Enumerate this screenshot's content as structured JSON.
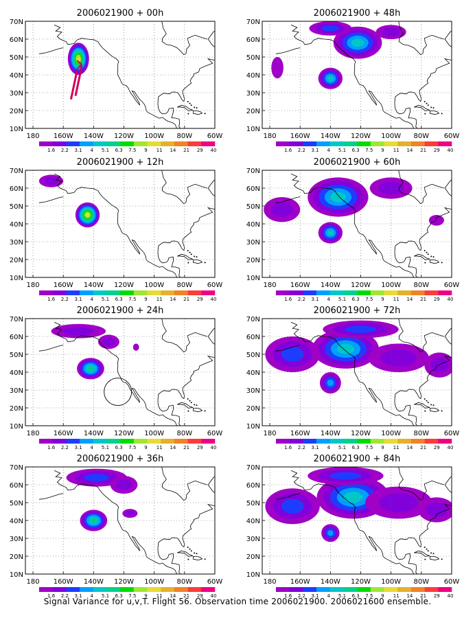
{
  "caption": "Signal Variance for u,v,T. Flight 56. Observation time 2006021900. 2006021600 ensemble.",
  "lat_labels": [
    "70N",
    "60N",
    "50N",
    "40N",
    "30N",
    "20N",
    "10N"
  ],
  "lon_labels": [
    "180",
    "160W",
    "140W",
    "120W",
    "100W",
    "80W",
    "60W"
  ],
  "scale_labels": [
    "1.6",
    "2.2",
    "3.1",
    "4",
    "5.1",
    "6.3",
    "7.5",
    "9",
    "11",
    "14",
    "21",
    "29",
    "40"
  ],
  "scale_colors": [
    "#a000c8",
    "#8200dc",
    "#1e3cff",
    "#00a0ff",
    "#00c8c8",
    "#00d28c",
    "#00dc00",
    "#a0e632",
    "#e6dc32",
    "#e6af2d",
    "#f08228",
    "#fa3c3c",
    "#f00082"
  ],
  "panels": [
    {
      "title": "2006021900 + 00h",
      "blobs": [
        {
          "lon": -150,
          "lat": 49,
          "rx": 7,
          "ry": 9,
          "peak": 8
        }
      ],
      "track": true,
      "circle": false
    },
    {
      "title": "2006021900 + 12h",
      "blobs": [
        {
          "lon": -144,
          "lat": 45,
          "rx": 8,
          "ry": 7,
          "peak": 8
        },
        {
          "lon": -168,
          "lat": 64,
          "rx": 8,
          "ry": 3.5,
          "peak": 1
        }
      ],
      "track": false,
      "circle": false
    },
    {
      "title": "2006021900 + 24h",
      "blobs": [
        {
          "lon": -142,
          "lat": 42,
          "rx": 9,
          "ry": 6,
          "peak": 5
        },
        {
          "lon": -150,
          "lat": 63,
          "rx": 18,
          "ry": 4,
          "peak": 1
        },
        {
          "lon": -130,
          "lat": 57,
          "rx": 7,
          "ry": 4,
          "peak": 1
        },
        {
          "lon": -112,
          "lat": 54,
          "rx": 2,
          "ry": 2,
          "peak": 0
        }
      ],
      "track": false,
      "circle": true
    },
    {
      "title": "2006021900 + 36h",
      "blobs": [
        {
          "lon": -140,
          "lat": 40,
          "rx": 9,
          "ry": 6,
          "peak": 5
        },
        {
          "lon": -138,
          "lat": 64,
          "rx": 20,
          "ry": 5,
          "peak": 2
        },
        {
          "lon": -120,
          "lat": 60,
          "rx": 9,
          "ry": 5,
          "peak": 1
        },
        {
          "lon": -116,
          "lat": 44,
          "rx": 5,
          "ry": 2.5,
          "peak": 1
        }
      ],
      "track": false,
      "circle": false
    },
    {
      "title": "2006021900 + 48h",
      "blobs": [
        {
          "lon": -140,
          "lat": 38,
          "rx": 8,
          "ry": 6,
          "peak": 4
        },
        {
          "lon": -122,
          "lat": 58,
          "rx": 16,
          "ry": 9,
          "peak": 4
        },
        {
          "lon": -140,
          "lat": 66,
          "rx": 14,
          "ry": 4,
          "peak": 2
        },
        {
          "lon": -175,
          "lat": 44,
          "rx": 4,
          "ry": 6,
          "peak": 0
        },
        {
          "lon": -100,
          "lat": 64,
          "rx": 10,
          "ry": 4,
          "peak": 1
        }
      ],
      "track": false,
      "circle": false
    },
    {
      "title": "2006021900 + 60h",
      "blobs": [
        {
          "lon": -135,
          "lat": 55,
          "rx": 20,
          "ry": 11,
          "peak": 4
        },
        {
          "lon": -140,
          "lat": 35,
          "rx": 8,
          "ry": 6,
          "peak": 4
        },
        {
          "lon": -172,
          "lat": 48,
          "rx": 12,
          "ry": 7,
          "peak": 1
        },
        {
          "lon": -100,
          "lat": 60,
          "rx": 14,
          "ry": 6,
          "peak": 1
        },
        {
          "lon": -70,
          "lat": 42,
          "rx": 5,
          "ry": 3,
          "peak": 0
        }
      ],
      "track": false,
      "circle": false
    },
    {
      "title": "2006021900 + 72h",
      "blobs": [
        {
          "lon": -130,
          "lat": 53,
          "rx": 22,
          "ry": 11,
          "peak": 4
        },
        {
          "lon": -140,
          "lat": 34,
          "rx": 7,
          "ry": 6,
          "peak": 3
        },
        {
          "lon": -165,
          "lat": 50,
          "rx": 18,
          "ry": 10,
          "peak": 2
        },
        {
          "lon": -95,
          "lat": 48,
          "rx": 20,
          "ry": 8,
          "peak": 1
        },
        {
          "lon": -68,
          "lat": 44,
          "rx": 10,
          "ry": 7,
          "peak": 1
        },
        {
          "lon": -120,
          "lat": 64,
          "rx": 25,
          "ry": 5,
          "peak": 2
        }
      ],
      "track": false,
      "circle": false
    },
    {
      "title": "2006021900 + 84h",
      "blobs": [
        {
          "lon": -125,
          "lat": 53,
          "rx": 24,
          "ry": 12,
          "peak": 4
        },
        {
          "lon": -140,
          "lat": 33,
          "rx": 6,
          "ry": 5,
          "peak": 3
        },
        {
          "lon": -165,
          "lat": 48,
          "rx": 18,
          "ry": 10,
          "peak": 2
        },
        {
          "lon": -95,
          "lat": 50,
          "rx": 22,
          "ry": 9,
          "peak": 1
        },
        {
          "lon": -70,
          "lat": 46,
          "rx": 12,
          "ry": 7,
          "peak": 1
        },
        {
          "lon": -130,
          "lat": 65,
          "rx": 25,
          "ry": 5,
          "peak": 2
        }
      ],
      "track": false,
      "circle": false
    }
  ]
}
